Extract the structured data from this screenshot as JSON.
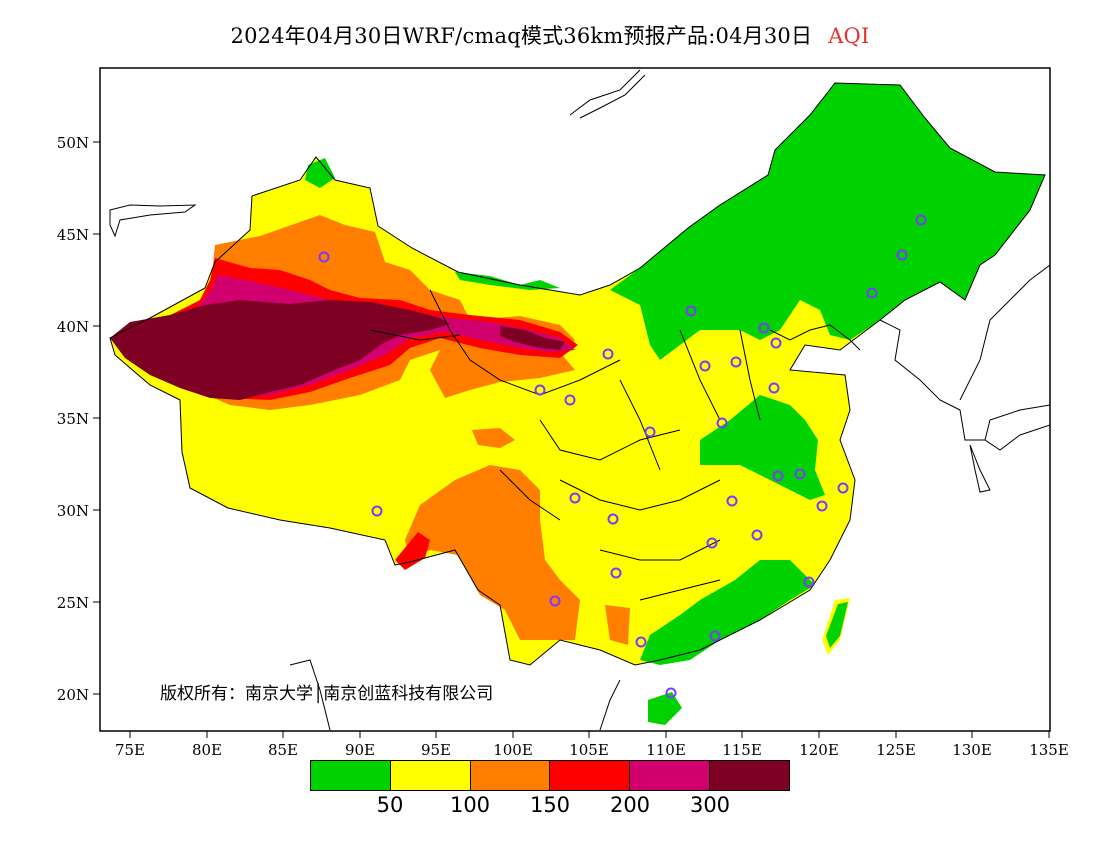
{
  "title": {
    "main": "2024年04月30日WRF/cmaq模式36km预报产品:04月30日",
    "variable": "AQI",
    "variable_color": "#e8302e"
  },
  "axes": {
    "lon_labels": [
      "75E",
      "80E",
      "85E",
      "90E",
      "95E",
      "100E",
      "105E",
      "110E",
      "115E",
      "120E",
      "125E",
      "130E",
      "135E"
    ],
    "lat_labels": [
      "20N",
      "25N",
      "30N",
      "35N",
      "40N",
      "45N",
      "50N"
    ]
  },
  "copyright": "版权所有：南京大学│南京创蓝科技有限公司",
  "legend": {
    "colors": [
      "#00d200",
      "#ffff00",
      "#ff7e00",
      "#ff0000",
      "#d2006e",
      "#7e0023"
    ],
    "ticks": [
      "50",
      "100",
      "150",
      "200",
      "300"
    ]
  },
  "map": {
    "projection": "lat-lon",
    "lon_range": [
      73,
      135
    ],
    "lat_range": [
      18,
      54
    ],
    "field": "AQI"
  }
}
